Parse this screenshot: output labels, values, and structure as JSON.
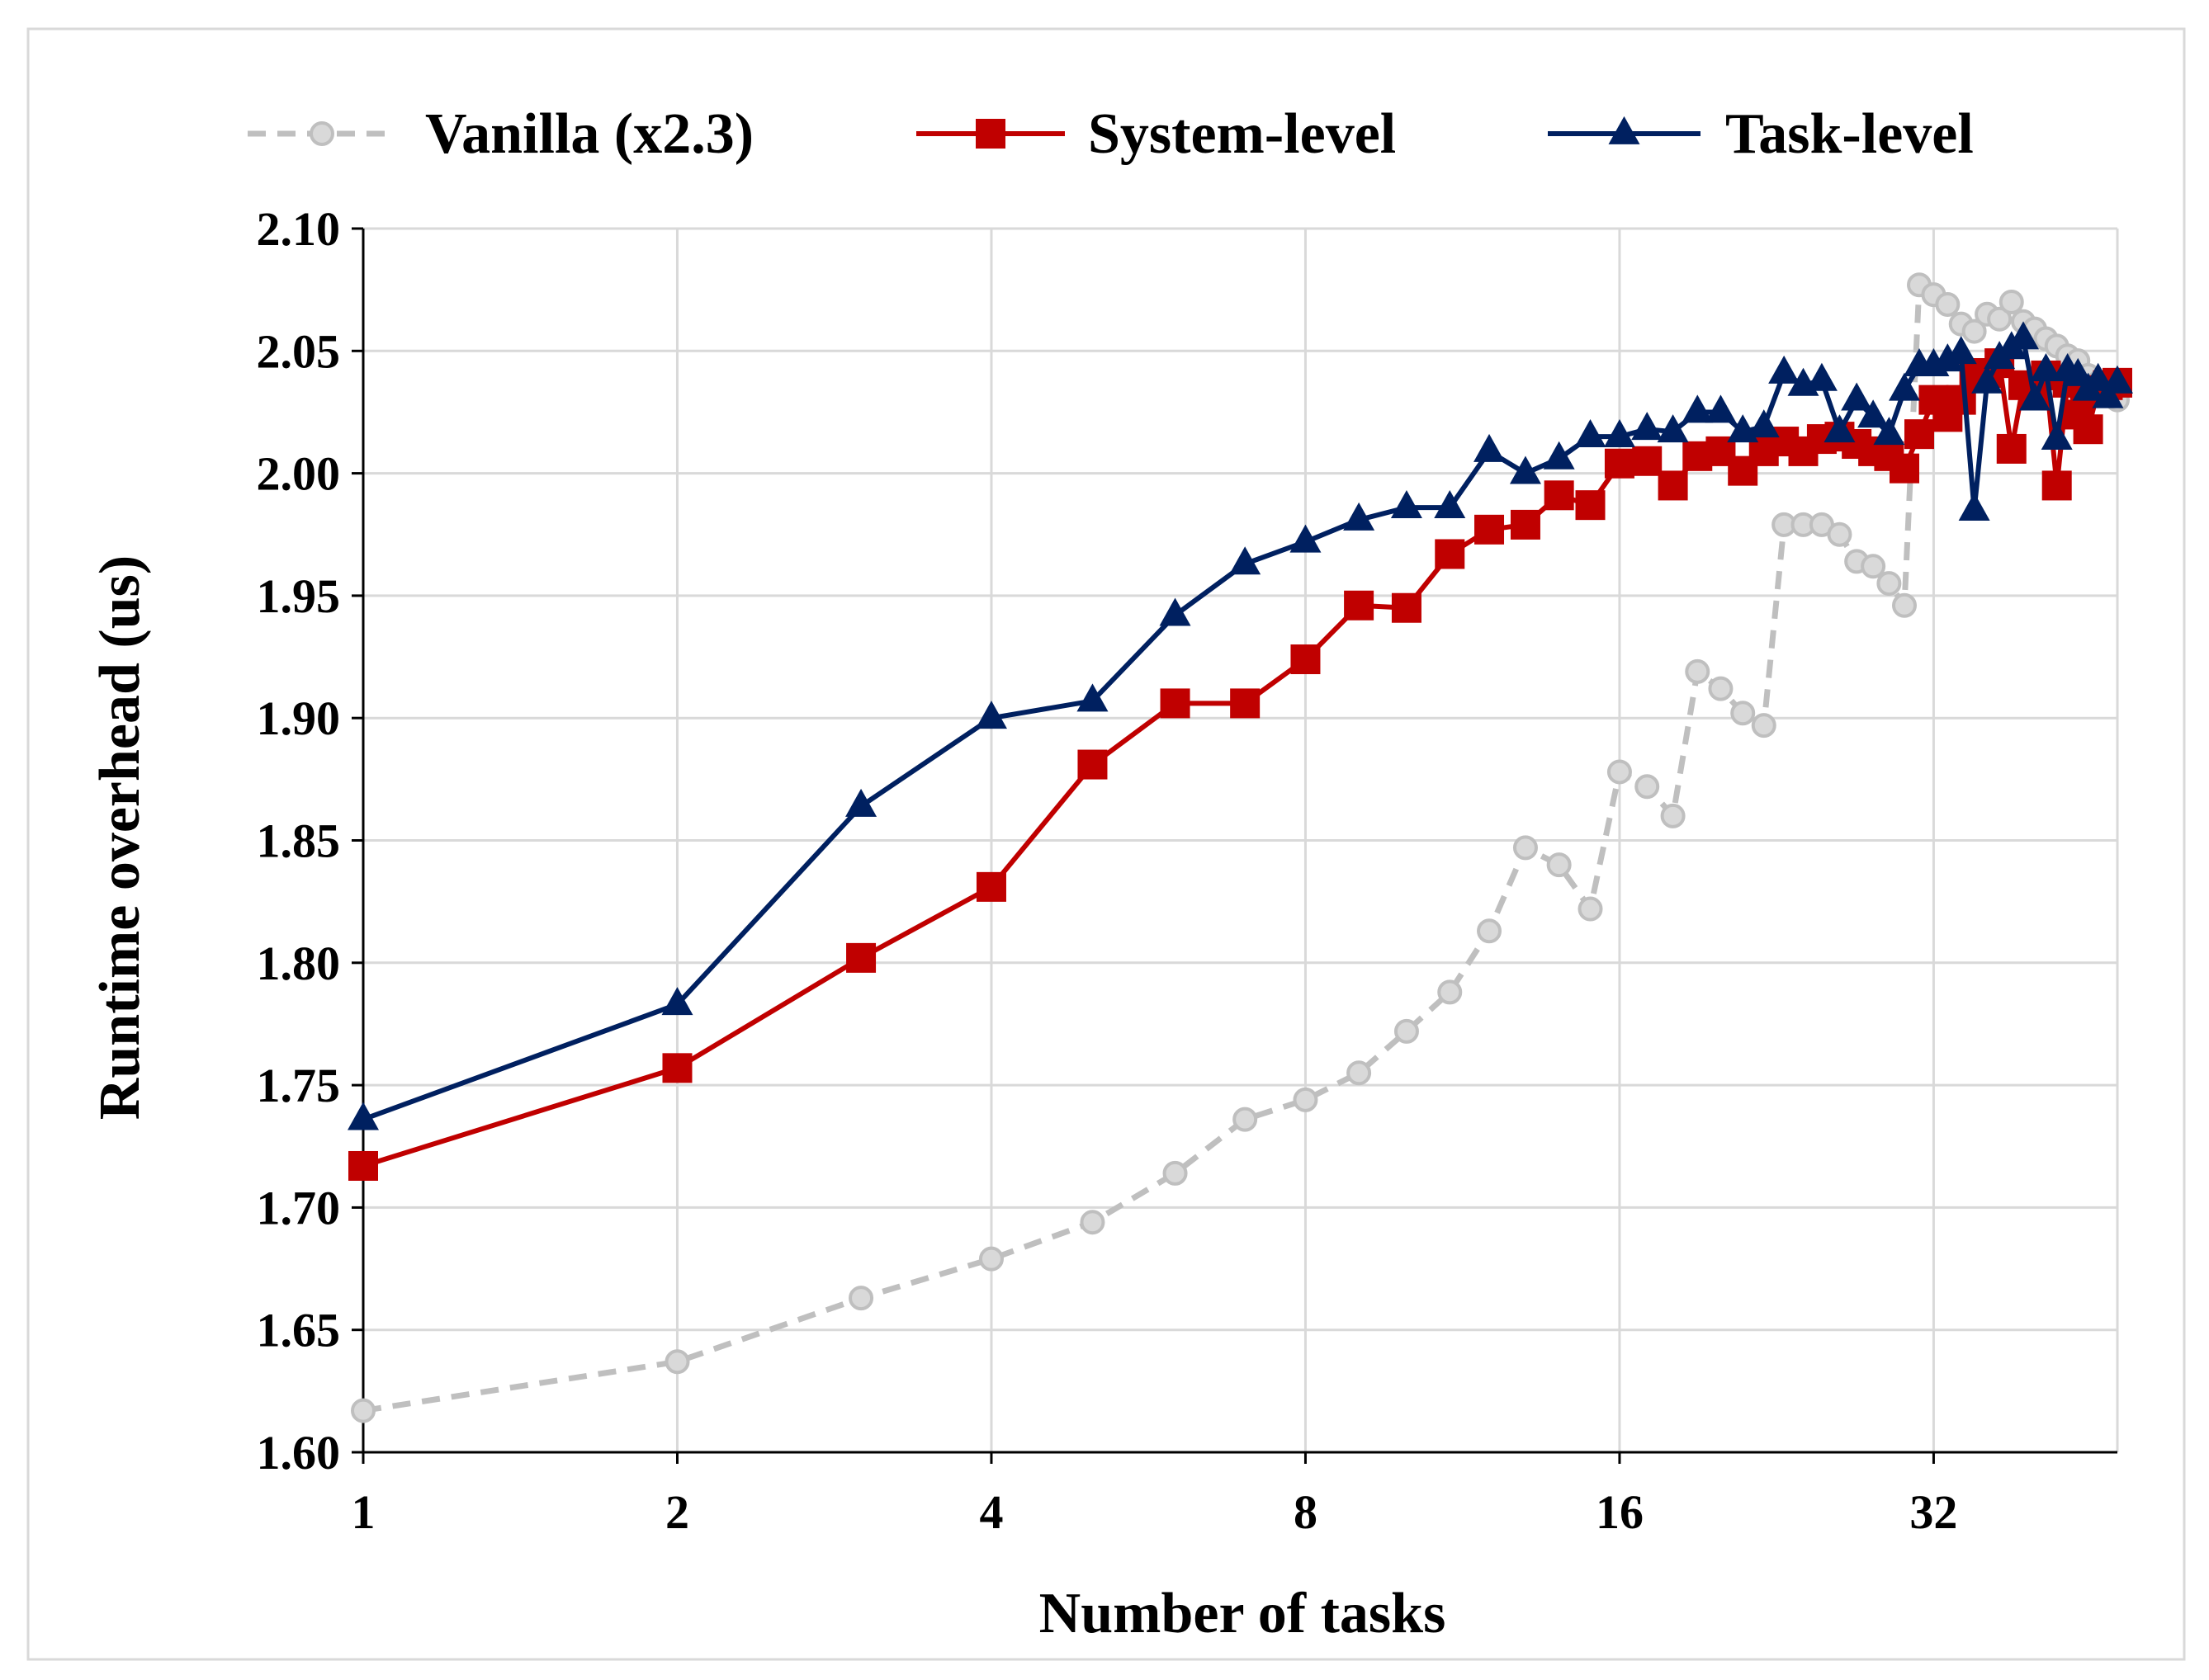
{
  "chart_data": {
    "type": "line",
    "title": "",
    "xlabel": "Number of tasks",
    "ylabel": "Runtime overhead (us)",
    "x_scale": "log2",
    "xlim": [
      1,
      48
    ],
    "ylim": [
      1.6,
      2.1
    ],
    "x_ticks": [
      1,
      2,
      4,
      8,
      16,
      32
    ],
    "x_tick_labels": [
      "1",
      "2",
      "4",
      "8",
      "16",
      "32"
    ],
    "y_ticks": [
      1.6,
      1.65,
      1.7,
      1.75,
      1.8,
      1.85,
      1.9,
      1.95,
      2.0,
      2.05,
      2.1
    ],
    "y_tick_labels": [
      "1.60",
      "1.65",
      "1.70",
      "1.75",
      "1.80",
      "1.85",
      "1.90",
      "1.95",
      "2.00",
      "2.05",
      "2.10"
    ],
    "grid": true,
    "legend_position": "top",
    "series": [
      {
        "name": "Vanilla (x2.3)",
        "color": "#bfbfbf",
        "line_style": "dashed",
        "marker": "circle",
        "x": [
          1,
          2,
          3,
          4,
          5,
          6,
          7,
          8,
          9,
          10,
          11,
          12,
          13,
          14,
          15,
          16,
          17,
          18,
          19,
          20,
          21,
          22,
          23,
          24,
          25,
          26,
          27,
          28,
          29,
          30,
          31,
          32,
          33,
          34,
          35,
          36,
          37,
          38,
          39,
          40,
          41,
          42,
          43,
          44,
          45,
          46,
          47,
          48
        ],
        "values": [
          1.617,
          1.637,
          1.663,
          1.679,
          1.694,
          1.714,
          1.736,
          1.744,
          1.755,
          1.772,
          1.788,
          1.813,
          1.847,
          1.84,
          1.822,
          1.878,
          1.872,
          1.86,
          1.919,
          1.912,
          1.902,
          1.897,
          1.979,
          1.979,
          1.979,
          1.975,
          1.964,
          1.962,
          1.955,
          1.946,
          2.077,
          2.073,
          2.069,
          2.061,
          2.058,
          2.065,
          2.063,
          2.07,
          2.062,
          2.059,
          2.055,
          2.052,
          2.048,
          2.046,
          2.04,
          2.037,
          2.034,
          2.03
        ]
      },
      {
        "name": "System-level",
        "color": "#c00000",
        "line_style": "solid",
        "marker": "square",
        "x": [
          1,
          2,
          3,
          4,
          5,
          6,
          7,
          8,
          9,
          10,
          11,
          12,
          13,
          14,
          15,
          16,
          17,
          18,
          19,
          20,
          21,
          22,
          23,
          24,
          25,
          26,
          27,
          28,
          29,
          30,
          31,
          32,
          33,
          34,
          35,
          36,
          37,
          38,
          39,
          40,
          41,
          42,
          43,
          44,
          45,
          46,
          47,
          48
        ],
        "values": [
          1.717,
          1.757,
          1.802,
          1.831,
          1.881,
          1.906,
          1.906,
          1.924,
          1.946,
          1.945,
          1.967,
          1.977,
          1.979,
          1.991,
          1.987,
          2.004,
          2.005,
          1.995,
          2.007,
          2.009,
          2.001,
          2.009,
          2.013,
          2.009,
          2.014,
          2.015,
          2.012,
          2.009,
          2.007,
          2.002,
          2.016,
          2.03,
          2.023,
          2.03,
          2.039,
          2.041,
          2.045,
          2.01,
          2.036,
          2.033,
          2.04,
          1.995,
          2.037,
          2.024,
          2.018,
          2.034,
          2.036,
          2.037
        ]
      },
      {
        "name": "Task-level",
        "color": "#002060",
        "line_style": "solid",
        "marker": "triangle",
        "x": [
          1,
          2,
          3,
          4,
          5,
          6,
          7,
          8,
          9,
          10,
          11,
          12,
          13,
          14,
          15,
          16,
          17,
          18,
          19,
          20,
          21,
          22,
          23,
          24,
          25,
          26,
          27,
          28,
          29,
          30,
          31,
          32,
          33,
          34,
          35,
          36,
          37,
          38,
          39,
          40,
          41,
          42,
          43,
          44,
          45,
          46,
          47,
          48
        ],
        "values": [
          1.736,
          1.783,
          1.864,
          1.9,
          1.907,
          1.942,
          1.963,
          1.972,
          1.981,
          1.986,
          1.986,
          2.009,
          2.0,
          2.006,
          2.015,
          2.015,
          2.018,
          2.017,
          2.025,
          2.025,
          2.017,
          2.019,
          2.041,
          2.036,
          2.038,
          2.017,
          2.03,
          2.023,
          2.016,
          2.034,
          2.044,
          2.044,
          2.046,
          2.049,
          1.985,
          2.037,
          2.047,
          2.051,
          2.055,
          2.03,
          2.042,
          2.014,
          2.042,
          2.04,
          2.034,
          2.038,
          2.031,
          2.037
        ]
      }
    ]
  }
}
